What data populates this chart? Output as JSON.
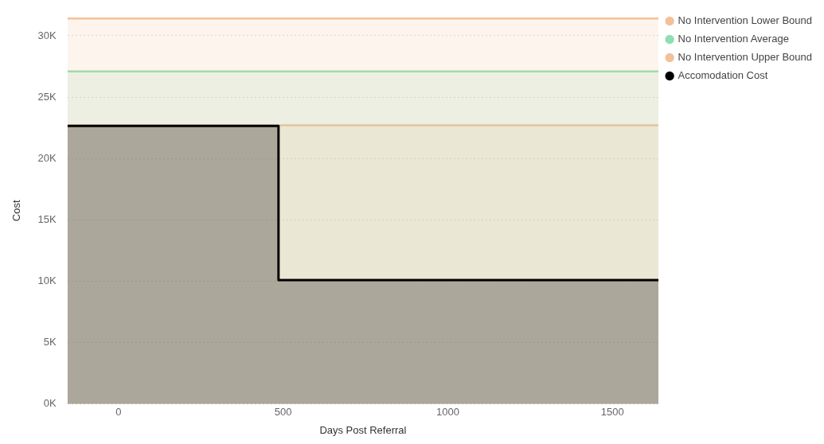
{
  "chart_data": {
    "type": "area",
    "xlabel": "Days Post Referral",
    "ylabel": "Cost",
    "xlim": [
      -155,
      1640
    ],
    "xticks": [
      0,
      500,
      1000,
      1500
    ],
    "ylim": [
      0,
      31500
    ],
    "yticks": [
      {
        "value": 0,
        "label": "0K"
      },
      {
        "value": 5000,
        "label": "5K"
      },
      {
        "value": 10000,
        "label": "10K"
      },
      {
        "value": 15000,
        "label": "15K"
      },
      {
        "value": 20000,
        "label": "20K"
      },
      {
        "value": 25000,
        "label": "25K"
      },
      {
        "value": 30000,
        "label": "30K"
      }
    ],
    "grid": "y",
    "legend": "right",
    "marker": "none",
    "line_style": "solid",
    "series": [
      {
        "name": "No Intervention Lower Bound",
        "color": "#f2c19a",
        "x": [
          -155,
          1640
        ],
        "values": [
          22700,
          22700
        ]
      },
      {
        "name": "No Intervention Average",
        "color": "#8ee0b0",
        "x": [
          -155,
          1640
        ],
        "values": [
          27100,
          27100
        ]
      },
      {
        "name": "No Intervention Upper Bound",
        "color": "#f2c19a",
        "x": [
          -155,
          1640
        ],
        "values": [
          31400,
          31400
        ]
      },
      {
        "name": "Accomodation Cost",
        "type": "step",
        "color": "#000000",
        "x": [
          -155,
          486,
          1640
        ],
        "values": [
          22650,
          10100,
          10100
        ]
      }
    ]
  }
}
